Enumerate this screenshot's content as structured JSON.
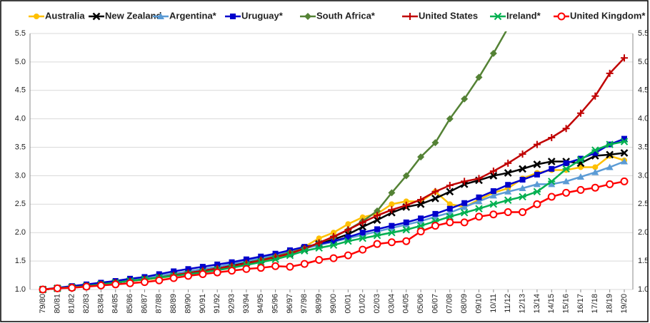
{
  "chart_data": {
    "type": "line",
    "categories": [
      "79/80",
      "80/81",
      "81/82",
      "82/83",
      "83/84",
      "84/85",
      "85/86",
      "86/87",
      "87/88",
      "88/89",
      "89/90",
      "90/91",
      "91/92",
      "92/93",
      "93/94",
      "94/95",
      "95/96",
      "96/97",
      "97/98",
      "98/99",
      "99/00",
      "00/01",
      "01/02",
      "02/03",
      "03/04",
      "04/05",
      "05/06",
      "06/07",
      "07/08",
      "08/09",
      "09/10",
      "10/11",
      "11/12",
      "12/13",
      "13/14",
      "14/15",
      "15/16",
      "16/17",
      "17/18",
      "18/19",
      "19/20"
    ],
    "ylim": [
      1.0,
      5.5
    ],
    "yticks": [
      {
        "value": 1,
        "label": "1.0"
      },
      {
        "value": 1.5,
        "label": "1.5"
      },
      {
        "value": 2,
        "label": "2.0"
      },
      {
        "value": 2.5,
        "label": "2.5"
      },
      {
        "value": 3,
        "label": "3.0"
      },
      {
        "value": 3.5,
        "label": "3.5"
      },
      {
        "value": 4,
        "label": "4.0"
      },
      {
        "value": 4.5,
        "label": "4.5"
      },
      {
        "value": 5,
        "label": "5.0"
      },
      {
        "value": 5.5,
        "label": "5.5"
      }
    ],
    "grid": true,
    "legend": "top",
    "series": [
      {
        "name": "Australia",
        "color": "#ffc000",
        "marker": "dot",
        "values": [
          1.0,
          1.02,
          1.05,
          1.07,
          1.1,
          1.12,
          1.15,
          1.17,
          1.2,
          1.24,
          1.28,
          1.32,
          1.36,
          1.4,
          1.45,
          1.5,
          1.55,
          1.62,
          1.75,
          1.9,
          2.0,
          2.15,
          2.27,
          2.33,
          2.5,
          2.55,
          2.55,
          2.72,
          2.5,
          2.45,
          2.58,
          2.7,
          2.78,
          2.95,
          3.05,
          3.1,
          3.1,
          3.15,
          3.15,
          3.35,
          3.27
        ]
      },
      {
        "name": "New Zealand",
        "color": "#000000",
        "marker": "x",
        "values": [
          1.0,
          1.02,
          1.04,
          1.06,
          1.09,
          1.12,
          1.15,
          1.18,
          1.22,
          1.26,
          1.3,
          1.34,
          1.38,
          1.42,
          1.47,
          1.52,
          1.58,
          1.64,
          1.72,
          1.8,
          1.88,
          1.97,
          2.1,
          2.22,
          2.35,
          2.45,
          2.5,
          2.6,
          2.72,
          2.85,
          2.92,
          3.0,
          3.05,
          3.12,
          3.2,
          3.25,
          3.25,
          3.22,
          3.35,
          3.37,
          3.4
        ]
      },
      {
        "name": "Argentina*",
        "color": "#5b9bd5",
        "marker": "triangle",
        "values": [
          1.0,
          1.02,
          1.05,
          1.08,
          1.11,
          1.14,
          1.17,
          1.2,
          1.24,
          1.28,
          1.32,
          1.36,
          1.4,
          1.45,
          1.5,
          1.55,
          1.6,
          1.66,
          1.72,
          1.78,
          1.84,
          1.9,
          1.96,
          2.02,
          2.08,
          2.14,
          2.2,
          2.28,
          2.35,
          2.45,
          2.55,
          2.65,
          2.72,
          2.78,
          2.85,
          2.85,
          2.9,
          2.98,
          3.06,
          3.15,
          3.25
        ]
      },
      {
        "name": "Uruguay*",
        "color": "#0000cc",
        "marker": "square",
        "values": [
          1.0,
          1.03,
          1.06,
          1.09,
          1.12,
          1.15,
          1.19,
          1.22,
          1.27,
          1.32,
          1.36,
          1.4,
          1.44,
          1.48,
          1.53,
          1.58,
          1.63,
          1.69,
          1.75,
          1.8,
          1.85,
          1.92,
          2.0,
          2.06,
          2.12,
          2.18,
          2.25,
          2.33,
          2.42,
          2.52,
          2.62,
          2.73,
          2.84,
          2.93,
          3.02,
          3.12,
          3.22,
          3.3,
          3.4,
          3.55,
          3.65
        ]
      },
      {
        "name": "South Africa*",
        "color": "#548235",
        "marker": "diamond",
        "values": [
          1.0,
          1.02,
          1.04,
          1.06,
          1.09,
          1.12,
          1.15,
          1.18,
          1.21,
          1.25,
          1.29,
          1.33,
          1.37,
          1.41,
          1.46,
          1.52,
          1.58,
          1.65,
          1.72,
          1.82,
          1.92,
          2.05,
          2.2,
          2.38,
          2.7,
          3.0,
          3.33,
          3.58,
          4.0,
          4.35,
          4.73,
          5.15,
          5.6,
          null,
          null,
          null,
          null,
          null,
          null,
          null,
          null
        ]
      },
      {
        "name": "United States",
        "color": "#c00000",
        "marker": "plus",
        "values": [
          1.0,
          1.02,
          1.04,
          1.06,
          1.09,
          1.12,
          1.15,
          1.18,
          1.21,
          1.25,
          1.29,
          1.33,
          1.37,
          1.41,
          1.46,
          1.51,
          1.57,
          1.63,
          1.72,
          1.82,
          1.93,
          2.05,
          2.18,
          2.3,
          2.4,
          2.48,
          2.58,
          2.72,
          2.83,
          2.9,
          2.95,
          3.08,
          3.22,
          3.38,
          3.55,
          3.67,
          3.83,
          4.1,
          4.4,
          4.8,
          5.07
        ]
      },
      {
        "name": "Ireland*",
        "color": "#00b050",
        "marker": "star",
        "values": [
          1.0,
          1.02,
          1.04,
          1.06,
          1.09,
          1.12,
          1.15,
          1.18,
          1.21,
          1.24,
          1.27,
          1.3,
          1.34,
          1.38,
          1.43,
          1.48,
          1.53,
          1.6,
          1.68,
          1.73,
          1.78,
          1.85,
          1.9,
          1.95,
          2.0,
          2.05,
          2.12,
          2.2,
          2.28,
          2.35,
          2.42,
          2.5,
          2.57,
          2.63,
          2.72,
          2.9,
          3.12,
          3.28,
          3.45,
          3.55,
          3.6
        ]
      },
      {
        "name": "United Kingdom*",
        "color": "#ff0000",
        "marker": "circle",
        "values": [
          1.0,
          1.02,
          1.03,
          1.05,
          1.07,
          1.09,
          1.11,
          1.13,
          1.16,
          1.2,
          1.24,
          1.27,
          1.3,
          1.33,
          1.36,
          1.38,
          1.41,
          1.4,
          1.45,
          1.52,
          1.55,
          1.6,
          1.7,
          1.8,
          1.83,
          1.85,
          2.02,
          2.12,
          2.18,
          2.18,
          2.28,
          2.32,
          2.36,
          2.36,
          2.5,
          2.63,
          2.7,
          2.75,
          2.79,
          2.85,
          2.9
        ]
      }
    ]
  }
}
